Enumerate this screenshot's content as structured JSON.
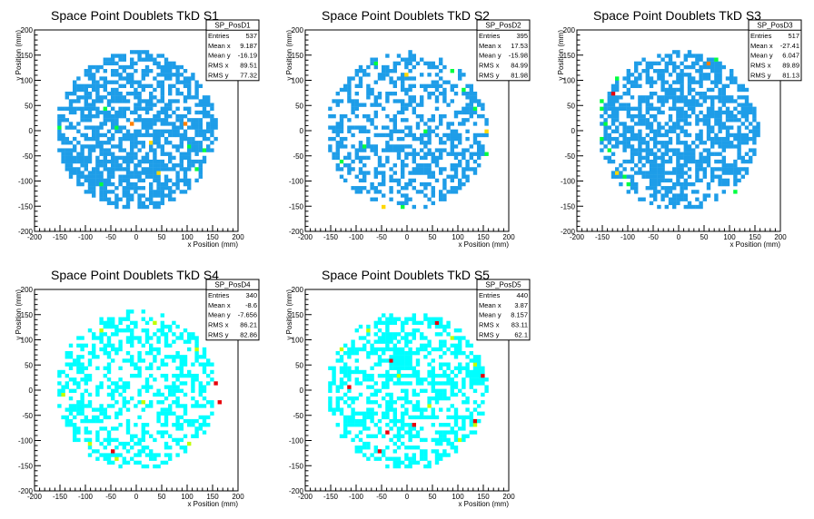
{
  "colors": {
    "level1": "#00ffff",
    "level2": "#1e9de8",
    "level3": "#00ff40",
    "level4": "#ffd700",
    "level5": "#ff8000",
    "level6": "#e8000b",
    "level7": "#ffff00",
    "level8": "#c0ff00"
  },
  "chart_data": [
    {
      "type": "heatmap",
      "title": "Space Point Doublets TkD S1",
      "xlabel": "x Position (mm)",
      "ylabel": "y Position (mm)",
      "xlim": [
        -200,
        200
      ],
      "ylim": [
        -200,
        200
      ],
      "xticks": [
        "-200",
        "-150",
        "-100",
        "-50",
        "0",
        "50",
        "100",
        "150",
        "200"
      ],
      "yticks": [
        "-200",
        "-150",
        "-100",
        "-50",
        "0",
        "50",
        "100",
        "150",
        "200"
      ],
      "stats": {
        "name": "SP_PosD1",
        "rows": [
          [
            "Entries",
            "537"
          ],
          [
            "Mean x",
            "9.187"
          ],
          [
            "Mean y",
            "-16.19"
          ],
          [
            "RMS x",
            "89.51"
          ],
          [
            "RMS y",
            "77.32"
          ]
        ]
      },
      "palette": [
        "#1e9de8",
        "#00ff40",
        "#ffd700",
        "#ff8000"
      ],
      "seed": 11,
      "density": 0.62,
      "hot_cells": [
        {
          "x": 97,
          "y": 10,
          "level": 3
        },
        {
          "x": -12,
          "y": 15,
          "level": 3
        },
        {
          "x": 28,
          "y": -25,
          "level": 2
        },
        {
          "x": 47,
          "y": -85,
          "level": 2
        },
        {
          "x": -40,
          "y": 5,
          "level": 1
        },
        {
          "x": -150,
          "y": 5,
          "level": 1
        },
        {
          "x": 135,
          "y": -40,
          "level": 1
        },
        {
          "x": -72,
          "y": -105,
          "level": 1
        },
        {
          "x": 120,
          "y": -75,
          "level": 1
        },
        {
          "x": -65,
          "y": 40,
          "level": 1
        },
        {
          "x": 150,
          "y": 110,
          "level": 1
        },
        {
          "x": 102,
          "y": -35,
          "level": 1
        }
      ]
    },
    {
      "type": "heatmap",
      "title": "Space Point Doublets TkD S2",
      "xlabel": "x Position (mm)",
      "ylabel": "y Position (mm)",
      "xlim": [
        -200,
        200
      ],
      "ylim": [
        -200,
        200
      ],
      "xticks": [
        "-200",
        "-150",
        "-100",
        "-50",
        "0",
        "50",
        "100",
        "150",
        "200"
      ],
      "yticks": [
        "-200",
        "-150",
        "-100",
        "-50",
        "0",
        "50",
        "100",
        "150",
        "200"
      ],
      "stats": {
        "name": "SP_PosD2",
        "rows": [
          [
            "Entries",
            "395"
          ],
          [
            "Mean x",
            "17.53"
          ],
          [
            "Mean y",
            "-15.98"
          ],
          [
            "RMS x",
            "84.99"
          ],
          [
            "RMS y",
            "81.98"
          ]
        ]
      },
      "palette": [
        "#1e9de8",
        "#00ff40",
        "#ffd700",
        "#ff8000"
      ],
      "seed": 23,
      "density": 0.45,
      "hot_cells": [
        {
          "x": 157,
          "y": -5,
          "level": 2
        },
        {
          "x": 0,
          "y": 108,
          "level": 2
        },
        {
          "x": -45,
          "y": -148,
          "level": 2
        },
        {
          "x": 110,
          "y": 80,
          "level": 1
        },
        {
          "x": 35,
          "y": -5,
          "level": 1
        },
        {
          "x": -130,
          "y": -65,
          "level": 1
        },
        {
          "x": -65,
          "y": 130,
          "level": 1
        },
        {
          "x": 135,
          "y": 45,
          "level": 1
        },
        {
          "x": 155,
          "y": -45,
          "level": 1
        },
        {
          "x": -85,
          "y": -35,
          "level": 1
        },
        {
          "x": -10,
          "y": -150,
          "level": 1
        },
        {
          "x": 90,
          "y": 115,
          "level": 1
        }
      ]
    },
    {
      "type": "heatmap",
      "title": "Space Point Doublets TkD S3",
      "xlabel": "x Position (mm)",
      "ylabel": "y Position (mm)",
      "xlim": [
        -200,
        200
      ],
      "ylim": [
        -200,
        200
      ],
      "xticks": [
        "-200",
        "-150",
        "-100",
        "-50",
        "0",
        "50",
        "100",
        "150",
        "200"
      ],
      "yticks": [
        "-200",
        "-150",
        "-100",
        "-50",
        "0",
        "50",
        "100",
        "150",
        "200"
      ],
      "stats": {
        "name": "SP_PosD3",
        "rows": [
          [
            "Entries",
            "517"
          ],
          [
            "Mean x",
            "-27.41"
          ],
          [
            "Mean y",
            "6.047"
          ],
          [
            "RMS x",
            "89.89"
          ],
          [
            "RMS y",
            "81.13"
          ]
        ]
      },
      "palette": [
        "#1e9de8",
        "#00ff40",
        "#ffd700",
        "#ff8000",
        "#e8000b"
      ],
      "seed": 37,
      "density": 0.58,
      "hot_cells": [
        {
          "x": -130,
          "y": 70,
          "level": 4
        },
        {
          "x": 60,
          "y": 130,
          "level": 3
        },
        {
          "x": -125,
          "y": -85,
          "level": 2
        },
        {
          "x": -150,
          "y": 40,
          "level": 1
        },
        {
          "x": -145,
          "y": 15,
          "level": 1
        },
        {
          "x": -155,
          "y": -15,
          "level": 1
        },
        {
          "x": -140,
          "y": -40,
          "level": 1
        },
        {
          "x": -100,
          "y": -110,
          "level": 1
        },
        {
          "x": -155,
          "y": 55,
          "level": 1
        },
        {
          "x": -120,
          "y": 100,
          "level": 1
        },
        {
          "x": 70,
          "y": 140,
          "level": 1
        },
        {
          "x": 110,
          "y": -120,
          "level": 1
        },
        {
          "x": -110,
          "y": -95,
          "level": 1
        }
      ]
    },
    {
      "type": "heatmap",
      "title": "Space Point Doublets TkD S4",
      "xlabel": "x Position (mm)",
      "ylabel": "y Position (mm)",
      "xlim": [
        -200,
        200
      ],
      "ylim": [
        -200,
        200
      ],
      "xticks": [
        "-200",
        "-150",
        "-100",
        "-50",
        "0",
        "50",
        "100",
        "150",
        "200"
      ],
      "yticks": [
        "-200",
        "-150",
        "-100",
        "-50",
        "0",
        "50",
        "100",
        "150",
        "200"
      ],
      "stats": {
        "name": "SP_PosD4",
        "rows": [
          [
            "Entries",
            "340"
          ],
          [
            "Mean x",
            "-8.6"
          ],
          [
            "Mean y",
            "-7.656"
          ],
          [
            "RMS x",
            "86.21"
          ],
          [
            "RMS y",
            "82.86"
          ]
        ]
      },
      "palette": [
        "#00ffff",
        "#c0ff00",
        "#e8000b",
        "#ffff00"
      ],
      "seed": 53,
      "density": 0.4,
      "hot_cells": [
        {
          "x": -50,
          "y": -120,
          "level": 2
        },
        {
          "x": 155,
          "y": 15,
          "level": 2
        },
        {
          "x": 160,
          "y": -25,
          "level": 2
        },
        {
          "x": 35,
          "y": 130,
          "level": 1
        },
        {
          "x": -95,
          "y": -105,
          "level": 1
        },
        {
          "x": -145,
          "y": -10,
          "level": 1
        },
        {
          "x": 15,
          "y": -25,
          "level": 1
        },
        {
          "x": 100,
          "y": -110,
          "level": 1
        },
        {
          "x": -40,
          "y": -140,
          "level": 1
        },
        {
          "x": 120,
          "y": 80,
          "level": 1
        },
        {
          "x": -70,
          "y": 120,
          "level": 1
        }
      ]
    },
    {
      "type": "heatmap",
      "title": "Space Point Doublets TkD S5",
      "xlabel": "x Position (mm)",
      "ylabel": "y Position (mm)",
      "xlim": [
        -200,
        200
      ],
      "ylim": [
        -200,
        200
      ],
      "xticks": [
        "-200",
        "-150",
        "-100",
        "-50",
        "0",
        "50",
        "100",
        "150",
        "200"
      ],
      "yticks": [
        "-200",
        "-150",
        "-100",
        "-50",
        "0",
        "50",
        "100",
        "150",
        "200"
      ],
      "stats": {
        "name": "SP_PosD5",
        "rows": [
          [
            "Entries",
            "440"
          ],
          [
            "Mean x",
            "3.87"
          ],
          [
            "Mean y",
            "8.157"
          ],
          [
            "RMS x",
            "83.11"
          ],
          [
            "RMS y",
            "62.1"
          ]
        ]
      },
      "palette": [
        "#00ffff",
        "#c0ff00",
        "#e8000b",
        "#ffff00"
      ],
      "seed": 71,
      "density": 0.5,
      "hot_cells": [
        {
          "x": 60,
          "y": 135,
          "level": 2
        },
        {
          "x": -115,
          "y": 5,
          "level": 2
        },
        {
          "x": -30,
          "y": 60,
          "level": 2
        },
        {
          "x": -40,
          "y": -85,
          "level": 2
        },
        {
          "x": 15,
          "y": -70,
          "level": 2
        },
        {
          "x": 135,
          "y": -65,
          "level": 2
        },
        {
          "x": 145,
          "y": 30,
          "level": 2
        },
        {
          "x": -55,
          "y": -125,
          "level": 2
        },
        {
          "x": 130,
          "y": -70,
          "level": 1
        },
        {
          "x": -130,
          "y": 80,
          "level": 1
        },
        {
          "x": 130,
          "y": 50,
          "level": 1
        },
        {
          "x": 85,
          "y": 105,
          "level": 1
        },
        {
          "x": -20,
          "y": 30,
          "level": 1
        },
        {
          "x": 100,
          "y": -100,
          "level": 1
        },
        {
          "x": -75,
          "y": 115,
          "level": 1
        },
        {
          "x": 40,
          "y": -30,
          "level": 1
        }
      ]
    }
  ]
}
